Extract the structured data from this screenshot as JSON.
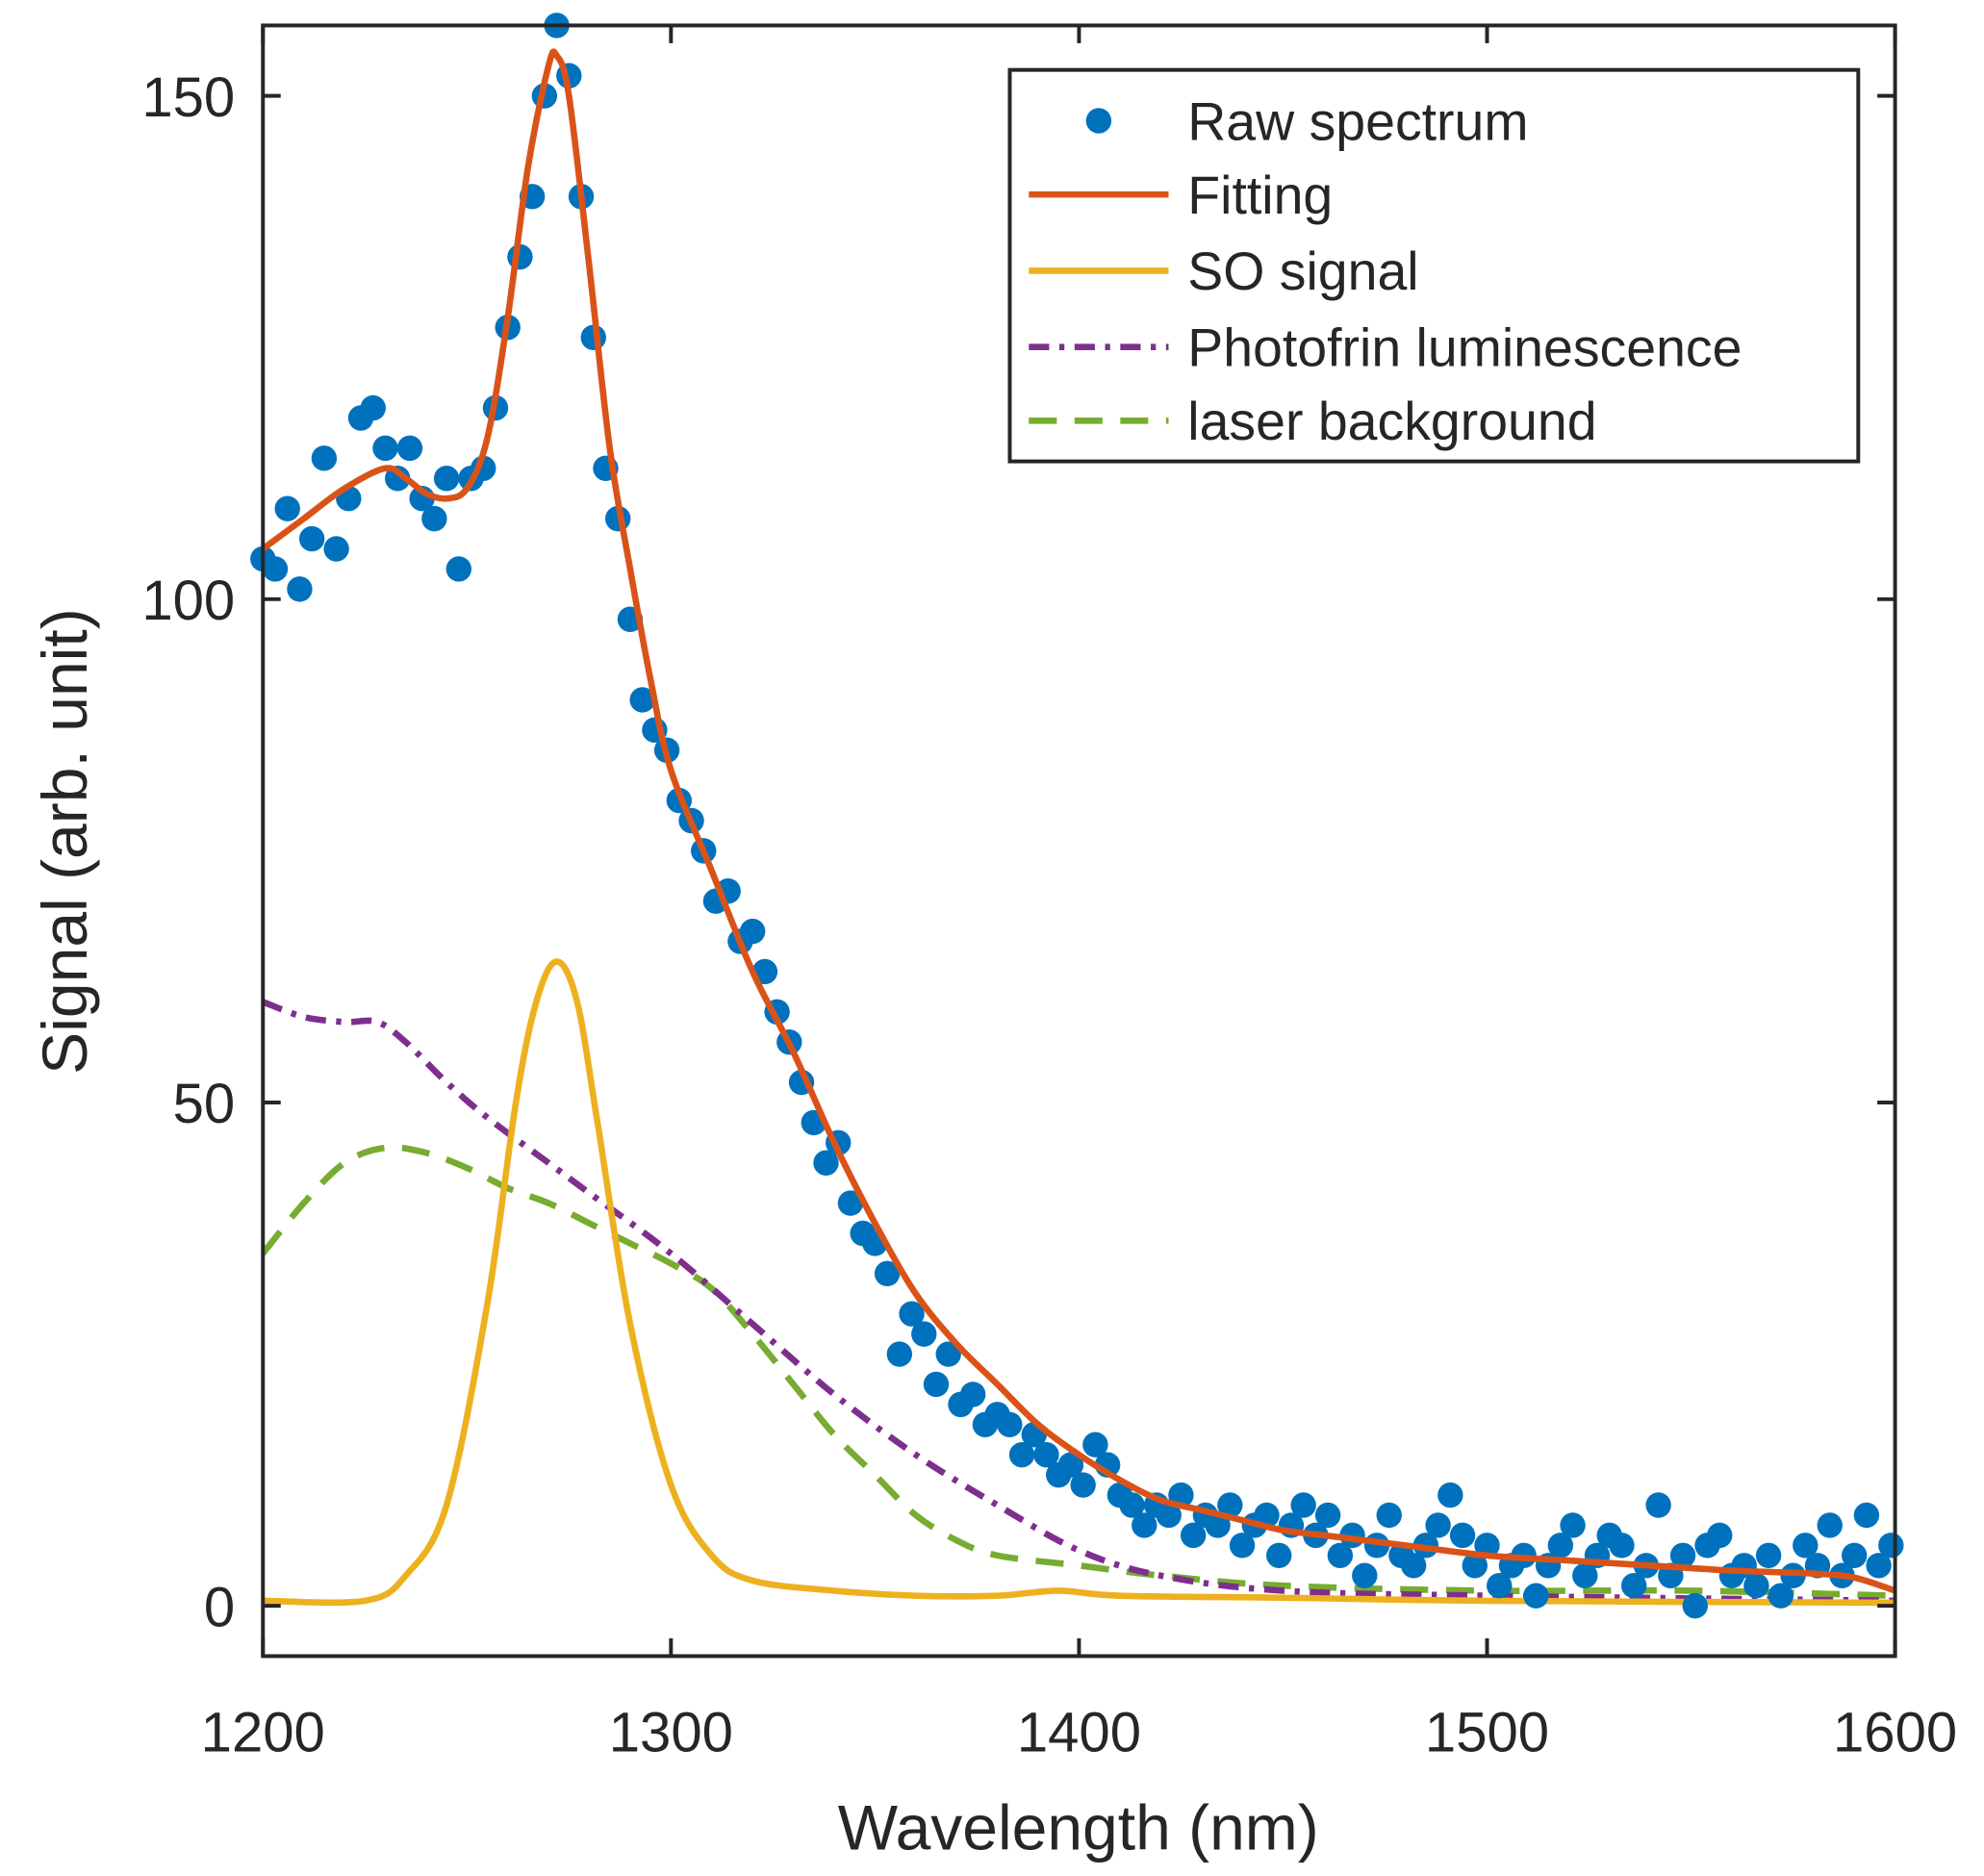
{
  "chart_data": {
    "type": "line",
    "xlabel": "Wavelength (nm)",
    "ylabel": "Signal (arb. unit)",
    "xlim": [
      1200,
      1600
    ],
    "ylim": [
      -5,
      157
    ],
    "xticks": [
      1200,
      1300,
      1400,
      1500,
      1600
    ],
    "yticks": [
      0,
      50,
      100,
      150
    ],
    "xtick_labels": [
      "1200",
      "1300",
      "1400",
      "1500",
      "1600"
    ],
    "ytick_labels": [
      "0",
      "50",
      "100",
      "150"
    ],
    "grid": false,
    "legend_position": "top-right",
    "series": [
      {
        "name": "Raw spectrum",
        "style": "markers",
        "color": "#0072BD",
        "x": [
          1200,
          1203,
          1206,
          1209,
          1212,
          1215,
          1218,
          1221,
          1224,
          1227,
          1230,
          1233,
          1236,
          1239,
          1242,
          1245,
          1248,
          1251,
          1254,
          1257,
          1260,
          1263,
          1266,
          1269,
          1272,
          1275,
          1278,
          1281,
          1284,
          1287,
          1290,
          1293,
          1296,
          1299,
          1302,
          1305,
          1308,
          1311,
          1314,
          1317,
          1320,
          1323,
          1326,
          1329,
          1332,
          1335,
          1338,
          1341,
          1344,
          1347,
          1350,
          1353,
          1356,
          1359,
          1362,
          1365,
          1368,
          1371,
          1374,
          1377,
          1380,
          1383,
          1386,
          1389,
          1392,
          1395,
          1398,
          1401,
          1404,
          1407,
          1410,
          1413,
          1416,
          1419,
          1422,
          1425,
          1428,
          1431,
          1434,
          1437,
          1440,
          1443,
          1446,
          1449,
          1452,
          1455,
          1458,
          1461,
          1464,
          1467,
          1470,
          1473,
          1476,
          1479,
          1482,
          1485,
          1488,
          1491,
          1494,
          1497,
          1500,
          1503,
          1506,
          1509,
          1512,
          1515,
          1518,
          1521,
          1524,
          1527,
          1530,
          1533,
          1536,
          1539,
          1542,
          1545,
          1548,
          1551,
          1554,
          1557,
          1560,
          1563,
          1566,
          1569,
          1572,
          1575,
          1578,
          1581,
          1584,
          1587,
          1590,
          1593,
          1596,
          1599
        ],
        "y": [
          104,
          103,
          109,
          101,
          106,
          114,
          105,
          110,
          118,
          119,
          115,
          112,
          115,
          110,
          108,
          112,
          103,
          112,
          113,
          119,
          127,
          134,
          140,
          150,
          157,
          152,
          140,
          126,
          113,
          108,
          98,
          90,
          87,
          85,
          80,
          78,
          75,
          70,
          71,
          66,
          67,
          63,
          59,
          56,
          52,
          48,
          44,
          46,
          40,
          37,
          36,
          33,
          25,
          29,
          27,
          22,
          25,
          20,
          21,
          18,
          19,
          18,
          15,
          17,
          15,
          13,
          14,
          12,
          16,
          14,
          11,
          10,
          8,
          10,
          9,
          11,
          7,
          9,
          8,
          10,
          6,
          8,
          9,
          5,
          8,
          10,
          7,
          9,
          5,
          7,
          3,
          6,
          9,
          5,
          4,
          6,
          8,
          11,
          7,
          4,
          6,
          2,
          4,
          5,
          1,
          4,
          6,
          8,
          3,
          5,
          7,
          6,
          2,
          4,
          10,
          3,
          5,
          0,
          6,
          7,
          3,
          4,
          2,
          5,
          1,
          3,
          6,
          4,
          8,
          3,
          5,
          9,
          4,
          6
        ]
      },
      {
        "name": "Fitting",
        "style": "solid",
        "color": "#D95319",
        "x": [
          1200,
          1210,
          1220,
          1230,
          1235,
          1240,
          1245,
          1250,
          1255,
          1260,
          1265,
          1270,
          1272,
          1275,
          1280,
          1285,
          1290,
          1295,
          1300,
          1310,
          1320,
          1330,
          1340,
          1350,
          1360,
          1370,
          1380,
          1390,
          1400,
          1410,
          1420,
          1430,
          1440,
          1450,
          1460,
          1480,
          1500,
          1520,
          1540,
          1560,
          1580,
          1590,
          1600
        ],
        "y": [
          105,
          108,
          111,
          113,
          112,
          110.5,
          110,
          111,
          116,
          128,
          143,
          153,
          154,
          150,
          133,
          115,
          103,
          92,
          83,
          73,
          63,
          55,
          46,
          38,
          31,
          26,
          22,
          18,
          15,
          12.5,
          10.5,
          9.5,
          8.5,
          7.5,
          7,
          6,
          5,
          4.5,
          4,
          3.5,
          3.2,
          2.8,
          1.5
        ]
      },
      {
        "name": "SO signal",
        "style": "solid",
        "color": "#EDB120",
        "x": [
          1200,
          1225,
          1235,
          1245,
          1255,
          1262,
          1267,
          1272,
          1277,
          1282,
          1290,
          1300,
          1310,
          1320,
          1340,
          1360,
          1380,
          1395,
          1410,
          1450,
          1500,
          1600
        ],
        "y": [
          0.5,
          0.5,
          3,
          10,
          30,
          50,
          60,
          64,
          60,
          48,
          28,
          12,
          5,
          2.5,
          1.5,
          1,
          1,
          1.5,
          1,
          0.8,
          0.5,
          0.3
        ]
      },
      {
        "name": "Photofrin luminescence",
        "style": "dash-dot",
        "color": "#7E2F8E",
        "x": [
          1200,
          1210,
          1220,
          1228,
          1235,
          1245,
          1255,
          1270,
          1280,
          1300,
          1320,
          1340,
          1360,
          1380,
          1400,
          1420,
          1450,
          1500,
          1600
        ],
        "y": [
          60,
          58.5,
          58,
          58,
          56,
          52,
          48.5,
          44,
          41,
          35,
          28,
          21,
          15,
          10,
          5.5,
          3,
          1.5,
          1,
          0.5
        ]
      },
      {
        "name": "laser background",
        "style": "dashed",
        "color": "#77AC30",
        "x": [
          1200,
          1210,
          1220,
          1230,
          1240,
          1250,
          1260,
          1270,
          1280,
          1290,
          1300,
          1310,
          1320,
          1330,
          1340,
          1350,
          1360,
          1370,
          1380,
          1400,
          1420,
          1450,
          1500,
          1550,
          1600
        ],
        "y": [
          35,
          40,
          44,
          45.5,
          45,
          43.5,
          41.5,
          40,
          38,
          36,
          34,
          31.5,
          27,
          22,
          17,
          13,
          9,
          6.5,
          5,
          4,
          3,
          2,
          1.5,
          1.5,
          1
        ]
      }
    ]
  }
}
